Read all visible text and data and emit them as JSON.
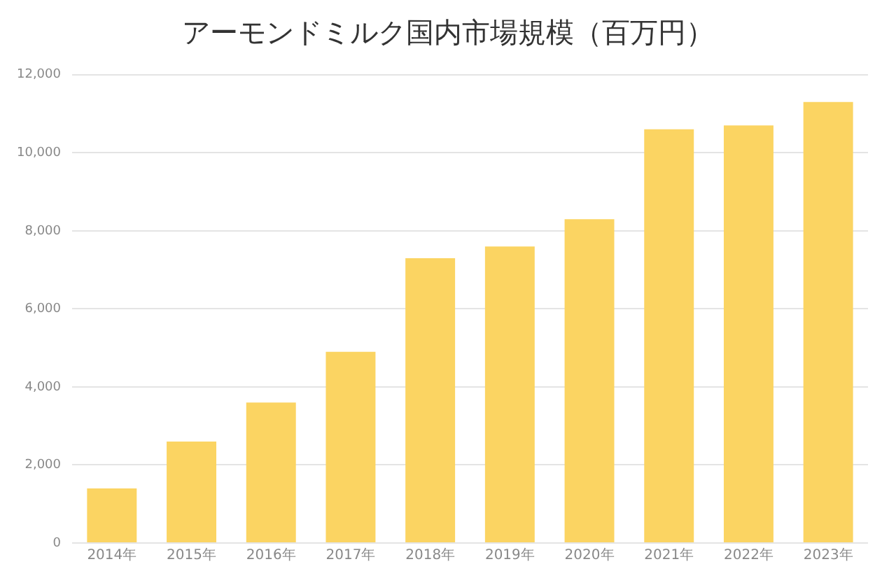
{
  "chart_data": {
    "type": "bar",
    "title": "アーモンドミルク国内市場規模（百万円）",
    "categories": [
      "2014年",
      "2015年",
      "2016年",
      "2017年",
      "2018年",
      "2019年",
      "2020年",
      "2021年",
      "2022年",
      "2023年"
    ],
    "values": [
      1400,
      2600,
      3600,
      4900,
      7300,
      7600,
      8300,
      10600,
      10700,
      11300
    ],
    "color": "#fbd462",
    "ylim": [
      0,
      12000
    ],
    "yticks": [
      0,
      {
        "value": 2000,
        "label": "2,000"
      },
      {
        "value": 4000,
        "label": "4,000"
      },
      {
        "value": 6000,
        "label": "6,000"
      },
      {
        "value": 8000,
        "label": "8,000"
      },
      {
        "value": 10000,
        "label": "10,000"
      },
      {
        "value": 12000,
        "label": "12,000"
      }
    ],
    "grid": "y"
  }
}
